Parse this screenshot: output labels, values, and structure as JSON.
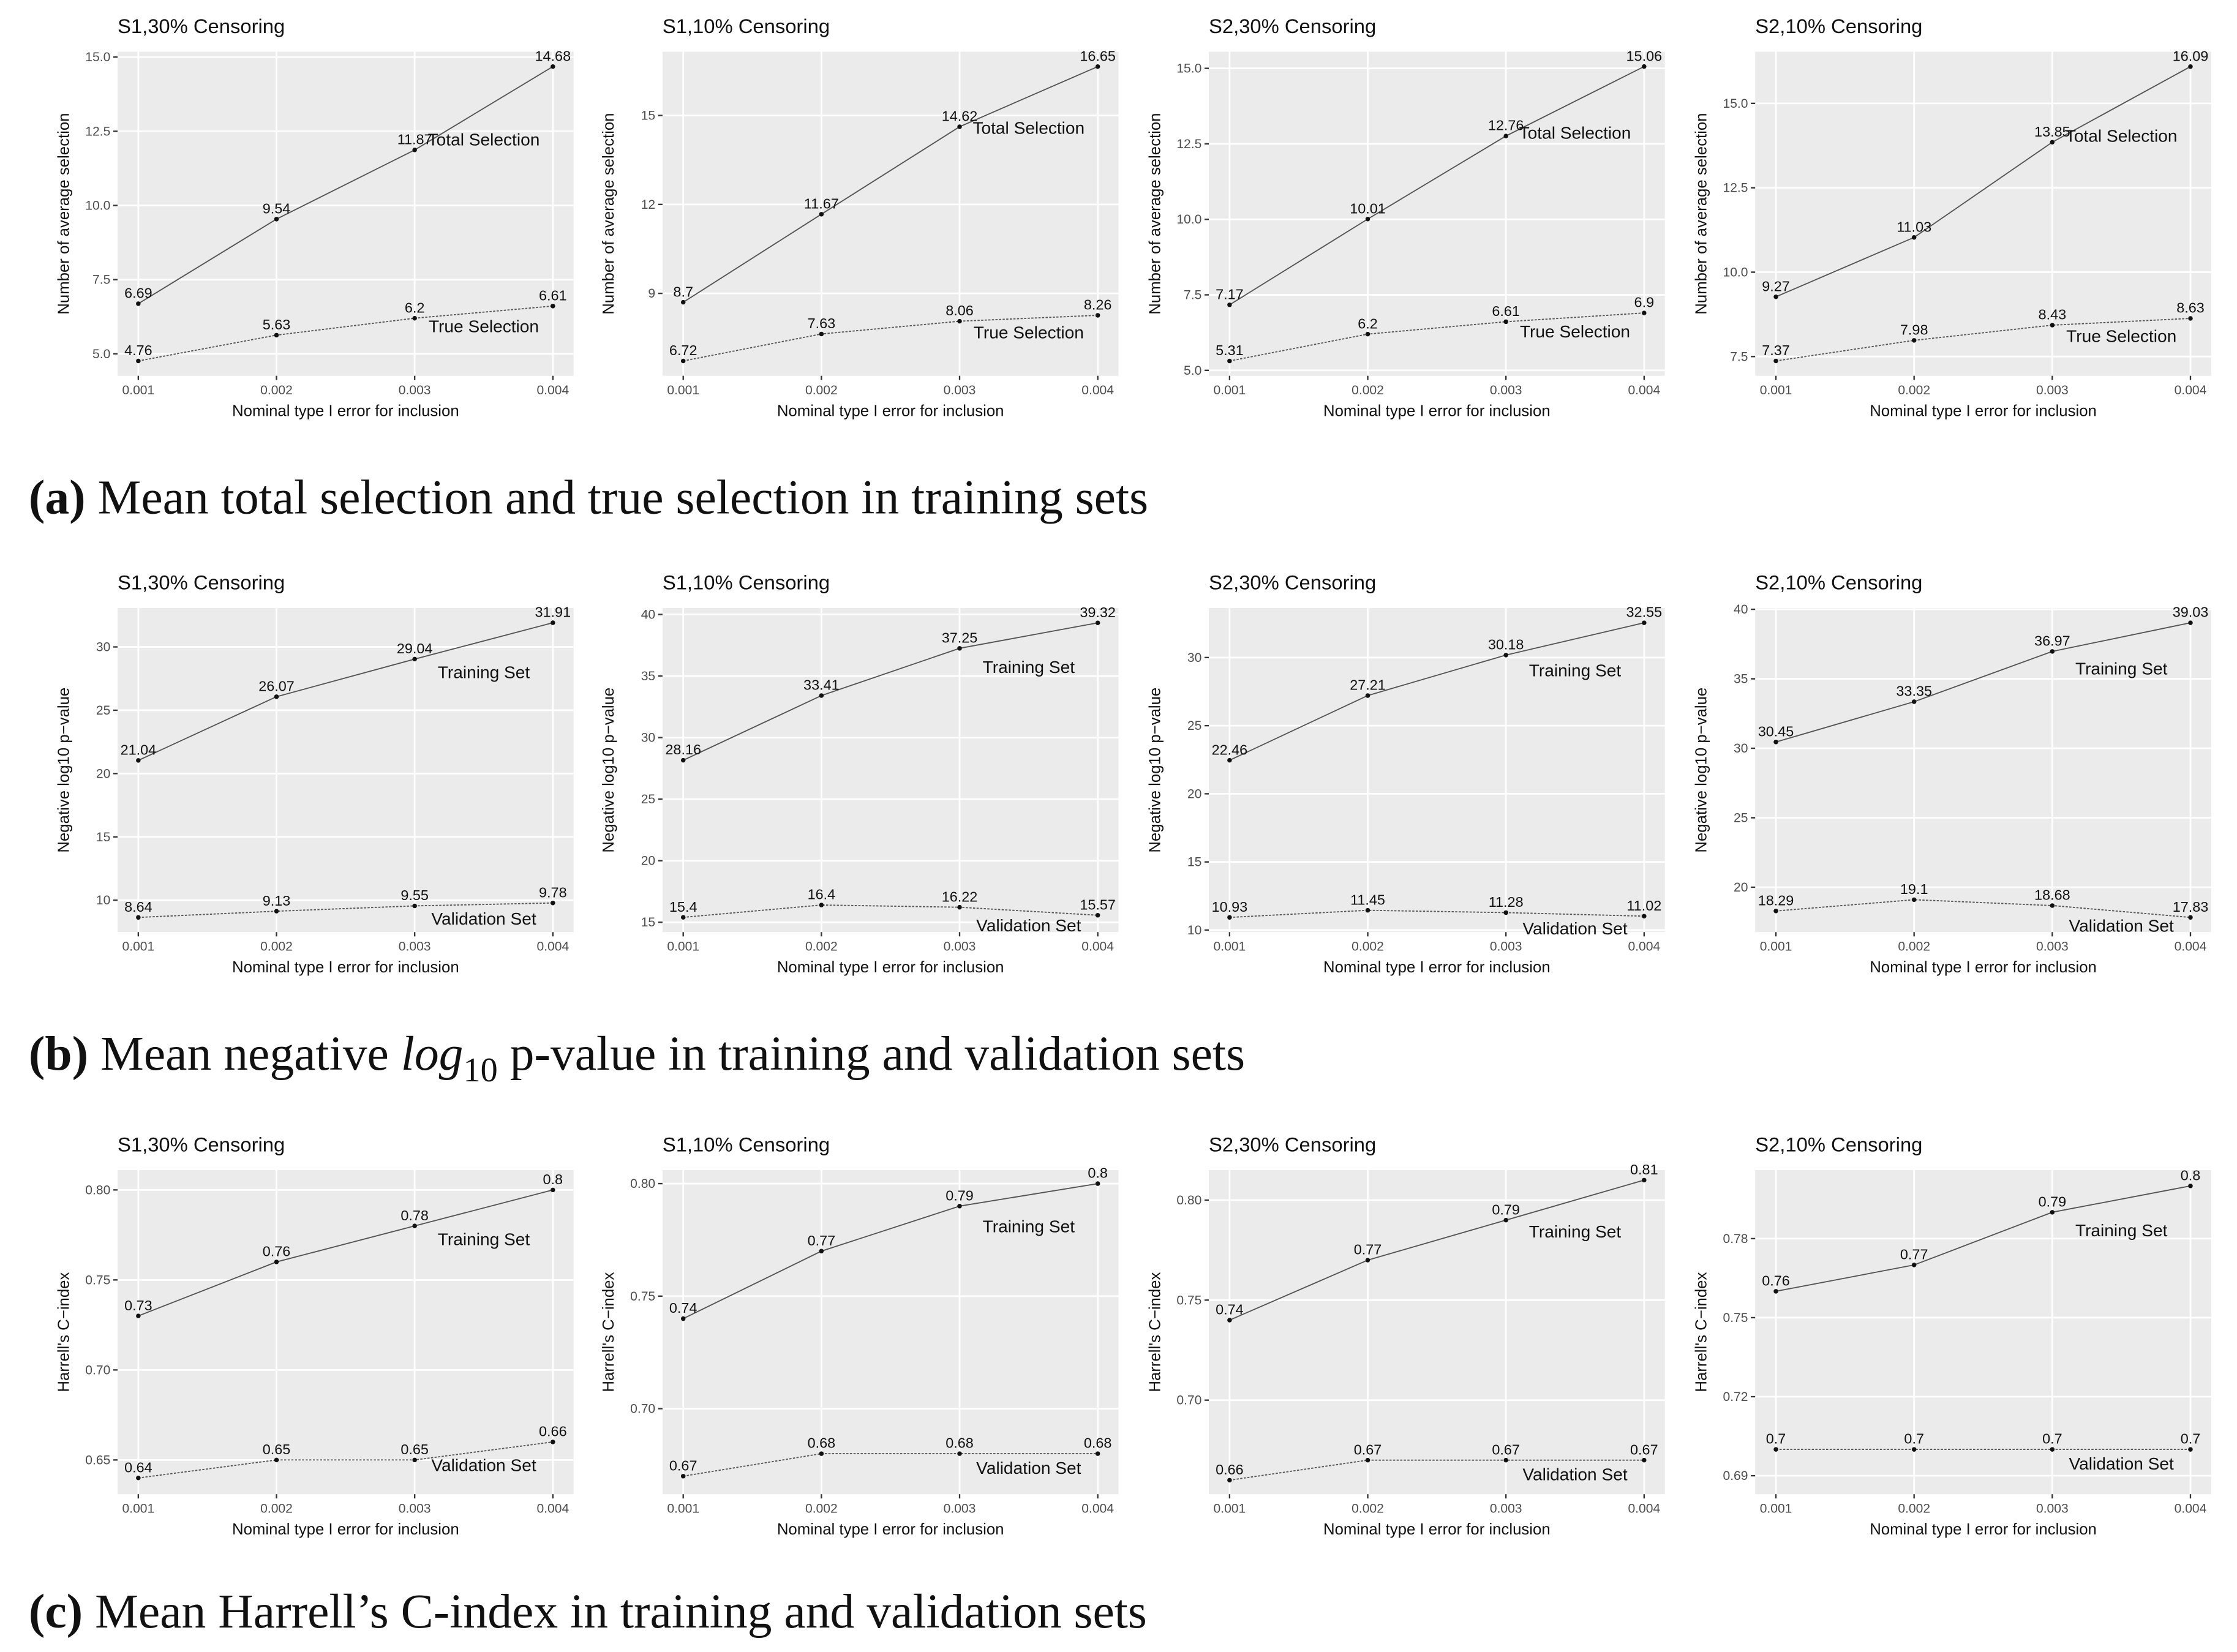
{
  "chart_data": [
    {
      "type": "line",
      "title": "S1,30% Censoring",
      "x_label": "Nominal type I error for inclusion",
      "y_label": "Number of average selection",
      "x": [
        0.001,
        0.002,
        0.003,
        0.004
      ],
      "xlim": [
        0.00085,
        0.00415
      ],
      "xticks": [
        0.001,
        0.002,
        0.003,
        0.004
      ],
      "ylim": [
        4.26,
        15.18
      ],
      "yticks": [
        {
          "value": 5,
          "label": "5.0"
        },
        7.5,
        {
          "value": 10,
          "label": "10.0"
        },
        12.5,
        {
          "value": 15,
          "label": "15.0"
        }
      ],
      "grid": true,
      "series": [
        {
          "name": "Total Selection",
          "color": "#555555",
          "linestyle": "solid",
          "values": [
            6.69,
            9.54,
            11.87,
            14.68
          ]
        },
        {
          "name": "True Selection",
          "color": "#555555",
          "linestyle": "dotted",
          "values": [
            4.76,
            5.63,
            6.2,
            6.61
          ]
        }
      ]
    },
    {
      "type": "line",
      "title": "S1,10% Censoring",
      "x_label": "Nominal type I error for inclusion",
      "y_label": "Number of average selection",
      "x": [
        0.001,
        0.002,
        0.003,
        0.004
      ],
      "xlim": [
        0.00085,
        0.00415
      ],
      "xticks": [
        0.001,
        0.002,
        0.003,
        0.004
      ],
      "ylim": [
        6.22,
        17.15
      ],
      "yticks": [
        9,
        12,
        15
      ],
      "grid": true,
      "series": [
        {
          "name": "Total Selection",
          "color": "#555555",
          "linestyle": "solid",
          "values": [
            8.7,
            11.67,
            14.62,
            16.65
          ]
        },
        {
          "name": "True Selection",
          "color": "#555555",
          "linestyle": "dotted",
          "values": [
            6.72,
            7.63,
            8.06,
            8.26
          ]
        }
      ]
    },
    {
      "type": "line",
      "title": "S2,30% Censoring",
      "x_label": "Nominal type I error for inclusion",
      "y_label": "Number of average selection",
      "x": [
        0.001,
        0.002,
        0.003,
        0.004
      ],
      "xlim": [
        0.00085,
        0.00415
      ],
      "xticks": [
        0.001,
        0.002,
        0.003,
        0.004
      ],
      "ylim": [
        4.82,
        15.55
      ],
      "yticks": [
        {
          "value": 5,
          "label": "5.0"
        },
        7.5,
        {
          "value": 10,
          "label": "10.0"
        },
        12.5,
        {
          "value": 15,
          "label": "15.0"
        }
      ],
      "grid": true,
      "series": [
        {
          "name": "Total Selection",
          "color": "#555555",
          "linestyle": "solid",
          "values": [
            7.17,
            10.01,
            12.76,
            15.06
          ]
        },
        {
          "name": "True Selection",
          "color": "#555555",
          "linestyle": "dotted",
          "values": [
            5.31,
            6.2,
            6.61,
            6.9
          ]
        }
      ]
    },
    {
      "type": "line",
      "title": "S2,10% Censoring",
      "x_label": "Nominal type I error for inclusion",
      "y_label": "Number of average selection",
      "x": [
        0.001,
        0.002,
        0.003,
        0.004
      ],
      "xlim": [
        0.00085,
        0.00415
      ],
      "xticks": [
        0.001,
        0.002,
        0.003,
        0.004
      ],
      "ylim": [
        6.93,
        16.53
      ],
      "yticks": [
        7.5,
        {
          "value": 10,
          "label": "10.0"
        },
        12.5,
        {
          "value": 15,
          "label": "15.0"
        }
      ],
      "grid": true,
      "series": [
        {
          "name": "Total Selection",
          "color": "#555555",
          "linestyle": "solid",
          "values": [
            9.27,
            11.03,
            13.85,
            16.09
          ]
        },
        {
          "name": "True Selection",
          "color": "#555555",
          "linestyle": "dotted",
          "values": [
            7.37,
            7.98,
            8.43,
            8.63
          ]
        }
      ]
    },
    {
      "type": "line",
      "title": "S1,30% Censoring",
      "x_label": "Nominal type I error for inclusion",
      "y_label": "Negative log10 p−value",
      "x": [
        0.001,
        0.002,
        0.003,
        0.004
      ],
      "xlim": [
        0.00085,
        0.00415
      ],
      "xticks": [
        0.001,
        0.002,
        0.003,
        0.004
      ],
      "ylim": [
        7.48,
        33.07
      ],
      "yticks": [
        10,
        15,
        20,
        25,
        30
      ],
      "grid": true,
      "series": [
        {
          "name": "Training Set",
          "color": "#555555",
          "linestyle": "solid",
          "values": [
            21.04,
            26.07,
            29.04,
            31.91
          ]
        },
        {
          "name": "Validation Set",
          "color": "#555555",
          "linestyle": "dotted",
          "values": [
            8.64,
            9.13,
            9.55,
            9.78
          ]
        }
      ]
    },
    {
      "type": "line",
      "title": "S1,10% Censoring",
      "x_label": "Nominal type I error for inclusion",
      "y_label": "Negative log10 p−value",
      "x": [
        0.001,
        0.002,
        0.003,
        0.004
      ],
      "xlim": [
        0.00085,
        0.00415
      ],
      "xticks": [
        0.001,
        0.002,
        0.003,
        0.004
      ],
      "ylim": [
        14.2,
        40.52
      ],
      "yticks": [
        15,
        20,
        25,
        30,
        35,
        40
      ],
      "grid": true,
      "series": [
        {
          "name": "Training Set",
          "color": "#555555",
          "linestyle": "solid",
          "values": [
            28.16,
            33.41,
            37.25,
            39.32
          ]
        },
        {
          "name": "Validation Set",
          "color": "#555555",
          "linestyle": "dotted",
          "values": [
            15.4,
            16.4,
            16.22,
            15.57
          ]
        }
      ]
    },
    {
      "type": "line",
      "title": "S2,30% Censoring",
      "x_label": "Nominal type I error for inclusion",
      "y_label": "Negative log10 p−value",
      "x": [
        0.001,
        0.002,
        0.003,
        0.004
      ],
      "xlim": [
        0.00085,
        0.00415
      ],
      "xticks": [
        0.001,
        0.002,
        0.003,
        0.004
      ],
      "ylim": [
        9.85,
        33.63
      ],
      "yticks": [
        10,
        15,
        20,
        25,
        30
      ],
      "grid": true,
      "series": [
        {
          "name": "Training Set",
          "color": "#555555",
          "linestyle": "solid",
          "values": [
            22.46,
            27.21,
            30.18,
            32.55
          ]
        },
        {
          "name": "Validation Set",
          "color": "#555555",
          "linestyle": "dotted",
          "values": [
            10.93,
            11.45,
            11.28,
            11.02
          ]
        }
      ]
    },
    {
      "type": "line",
      "title": "S2,10% Censoring",
      "x_label": "Nominal type I error for inclusion",
      "y_label": "Negative log10 p−value",
      "x": [
        0.001,
        0.002,
        0.003,
        0.004
      ],
      "xlim": [
        0.00085,
        0.00415
      ],
      "xticks": [
        0.001,
        0.002,
        0.003,
        0.004
      ],
      "ylim": [
        16.77,
        40.09
      ],
      "yticks": [
        20,
        25,
        30,
        35,
        40
      ],
      "grid": true,
      "series": [
        {
          "name": "Training Set",
          "color": "#555555",
          "linestyle": "solid",
          "values": [
            30.45,
            33.35,
            36.97,
            39.03
          ]
        },
        {
          "name": "Validation Set",
          "color": "#555555",
          "linestyle": "dotted",
          "values": [
            18.29,
            19.1,
            18.68,
            17.83
          ]
        }
      ]
    },
    {
      "type": "line",
      "title": "S1,30% Censoring",
      "x_label": "Nominal type I error for inclusion",
      "y_label": "Harrell's C−index",
      "x": [
        0.001,
        0.002,
        0.003,
        0.004
      ],
      "xlim": [
        0.00085,
        0.00415
      ],
      "xticks": [
        0.001,
        0.002,
        0.003,
        0.004
      ],
      "ylim": [
        0.631,
        0.811
      ],
      "yticks": [
        0.65,
        {
          "value": 0.7,
          "label": "0.70"
        },
        0.75,
        {
          "value": 0.8,
          "label": "0.80"
        }
      ],
      "grid": true,
      "series": [
        {
          "name": "Training Set",
          "color": "#555555",
          "linestyle": "solid",
          "values": [
            0.73,
            0.76,
            0.78,
            0.8
          ]
        },
        {
          "name": "Validation Set",
          "color": "#555555",
          "linestyle": "dotted",
          "values": [
            0.64,
            0.65,
            0.65,
            0.66
          ]
        }
      ]
    },
    {
      "type": "line",
      "title": "S1,10% Censoring",
      "x_label": "Nominal type I error for inclusion",
      "y_label": "Harrell's C−index",
      "x": [
        0.001,
        0.002,
        0.003,
        0.004
      ],
      "xlim": [
        0.00085,
        0.00415
      ],
      "xticks": [
        0.001,
        0.002,
        0.003,
        0.004
      ],
      "ylim": [
        0.662,
        0.806
      ],
      "yticks": [
        {
          "value": 0.7,
          "label": "0.70"
        },
        0.75,
        {
          "value": 0.8,
          "label": "0.80"
        }
      ],
      "grid": true,
      "series": [
        {
          "name": "Training Set",
          "color": "#555555",
          "linestyle": "solid",
          "values": [
            0.74,
            0.77,
            0.79,
            0.8
          ]
        },
        {
          "name": "Validation Set",
          "color": "#555555",
          "linestyle": "dotted",
          "values": [
            0.67,
            0.68,
            0.68,
            0.68
          ]
        }
      ]
    },
    {
      "type": "line",
      "title": "S2,30% Censoring",
      "x_label": "Nominal type I error for inclusion",
      "y_label": "Harrell's C−index",
      "x": [
        0.001,
        0.002,
        0.003,
        0.004
      ],
      "xlim": [
        0.00085,
        0.00415
      ],
      "xticks": [
        0.001,
        0.002,
        0.003,
        0.004
      ],
      "ylim": [
        0.653,
        0.815
      ],
      "yticks": [
        {
          "value": 0.7,
          "label": "0.70"
        },
        0.75,
        {
          "value": 0.8,
          "label": "0.80"
        }
      ],
      "grid": true,
      "series": [
        {
          "name": "Training Set",
          "color": "#555555",
          "linestyle": "solid",
          "values": [
            0.74,
            0.77,
            0.79,
            0.81
          ]
        },
        {
          "name": "Validation Set",
          "color": "#555555",
          "linestyle": "dotted",
          "values": [
            0.66,
            0.67,
            0.67,
            0.67
          ]
        }
      ]
    },
    {
      "type": "line",
      "title": "S2,10% Censoring",
      "x_label": "Nominal type I error for inclusion",
      "y_label": "Harrell's C−index",
      "x": [
        0.001,
        0.002,
        0.003,
        0.004
      ],
      "xlim": [
        0.00085,
        0.00415
      ],
      "xticks": [
        0.001,
        0.002,
        0.003,
        0.004
      ],
      "ylim": [
        0.683,
        0.806
      ],
      "yticks": [
        0.69,
        0.72,
        0.75,
        0.78
      ],
      "grid": true,
      "series": [
        {
          "name": "Training Set",
          "color": "#555555",
          "linestyle": "solid",
          "values": [
            0.76,
            0.77,
            0.79,
            0.8
          ]
        },
        {
          "name": "Validation Set",
          "color": "#555555",
          "linestyle": "dotted",
          "values": [
            0.7,
            0.7,
            0.7,
            0.7
          ]
        }
      ]
    }
  ],
  "captions": [
    {
      "label": "(a)",
      "text": " Mean total selection and true selection in training sets"
    },
    {
      "label": "(b)",
      "before": " Mean negative ",
      "math": "log",
      "sub": "10",
      "after": " p-value in training and validation sets"
    },
    {
      "label": "(c)",
      "text": " Mean Harrell’s C-index in training and validation sets"
    }
  ]
}
